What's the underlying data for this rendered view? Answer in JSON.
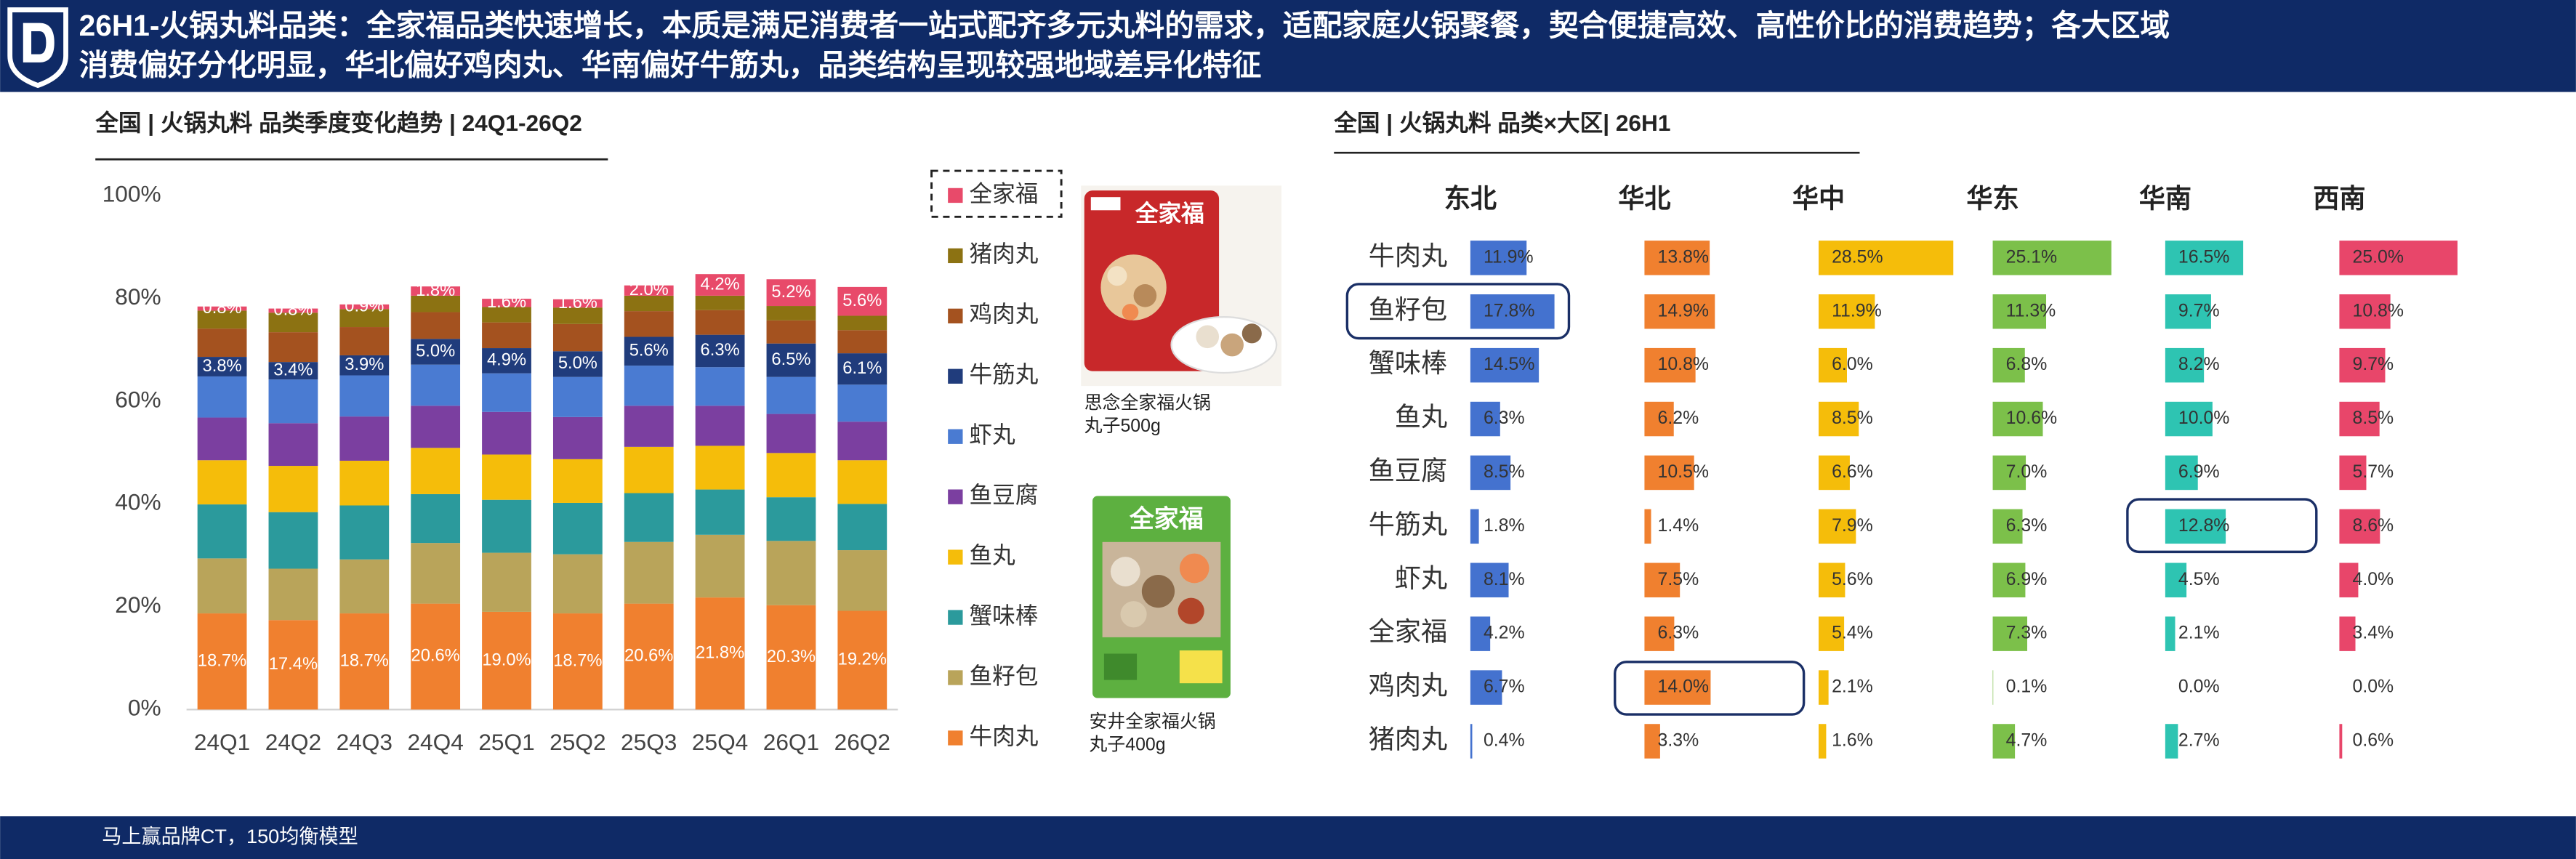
{
  "header": {
    "title_lines": [
      "26H1-火锅丸料品类：全家福品类快速增长，本质是满足消费者一站式配齐多元丸料的需求，适配家庭火锅聚餐，契合便捷高效、高性价比的消费趋势；各大区域",
      "消费偏好分化明显，华北偏好鸡肉丸、华南偏好牛筋丸，品类结构呈现较强地域差异化特征"
    ]
  },
  "chart_data": [
    {
      "type": "bar",
      "stacked": true,
      "title": "全国 | 火锅丸料 品类季度变化趋势 | 24Q1-26Q2",
      "categories": [
        "24Q1",
        "24Q2",
        "24Q3",
        "24Q4",
        "25Q1",
        "25Q2",
        "25Q3",
        "25Q4",
        "26Q1",
        "26Q2"
      ],
      "ylim": [
        0,
        100
      ],
      "yticks": [
        {
          "value": 0,
          "label": "0%"
        },
        {
          "value": 20,
          "label": "20%"
        },
        {
          "value": 40,
          "label": "40%"
        },
        {
          "value": 60,
          "label": "60%"
        },
        {
          "value": 80,
          "label": "80%"
        },
        {
          "value": 100,
          "label": "100%"
        }
      ],
      "grid": false,
      "legend": "right",
      "series": [
        {
          "name": "牛肉丸",
          "color": "#f0802f",
          "values": [
            18.7,
            17.4,
            18.7,
            20.6,
            19.0,
            18.7,
            20.6,
            21.8,
            20.3,
            19.2
          ],
          "value_labels": [
            "18.7%",
            "17.4%",
            "18.7%",
            "20.6%",
            "19.0%",
            "18.7%",
            "20.6%",
            "21.8%",
            "20.3%",
            "19.2%"
          ]
        },
        {
          "name": "鱼籽包",
          "color": "#b9a45a",
          "values": [
            10.7,
            10.0,
            10.5,
            11.8,
            11.5,
            11.5,
            12.0,
            12.2,
            12.5,
            11.8
          ]
        },
        {
          "name": "蟹味棒",
          "color": "#2b9a9c",
          "values": [
            10.5,
            11.0,
            10.5,
            9.5,
            10.3,
            10.0,
            9.5,
            8.8,
            8.5,
            9.0
          ]
        },
        {
          "name": "鱼丸",
          "color": "#f5bd0a",
          "values": [
            8.6,
            9.0,
            8.7,
            9.0,
            8.8,
            8.5,
            9.0,
            8.5,
            8.6,
            8.5
          ]
        },
        {
          "name": "鱼豆腐",
          "color": "#7b3fa0",
          "values": [
            8.3,
            8.3,
            8.6,
            8.2,
            8.3,
            8.2,
            8.0,
            7.8,
            7.6,
            7.5
          ]
        },
        {
          "name": "虾丸",
          "color": "#4a7bd2",
          "values": [
            8.0,
            8.5,
            8.0,
            8.0,
            7.5,
            7.8,
            7.8,
            7.5,
            7.2,
            7.2
          ]
        },
        {
          "name": "牛筋丸",
          "color": "#203c7c",
          "values": [
            3.8,
            3.4,
            3.9,
            5.0,
            4.9,
            5.0,
            5.6,
            6.3,
            6.5,
            6.1
          ],
          "value_labels": [
            "3.8%",
            "3.4%",
            "3.9%",
            "5.0%",
            "4.9%",
            "5.0%",
            "5.6%",
            "6.3%",
            "6.5%",
            "6.1%"
          ]
        },
        {
          "name": "鸡肉丸",
          "color": "#a4521f",
          "values": [
            5.5,
            5.8,
            5.5,
            5.2,
            5.0,
            5.3,
            5.0,
            4.8,
            4.5,
            4.5
          ]
        },
        {
          "name": "猪肉丸",
          "color": "#8c7212",
          "values": [
            3.5,
            3.8,
            3.5,
            3.2,
            3.0,
            3.2,
            3.0,
            2.8,
            2.8,
            2.8
          ]
        },
        {
          "name": "全家福",
          "color": "#e84a6a",
          "values": [
            0.8,
            0.8,
            0.9,
            1.8,
            1.6,
            1.6,
            2.0,
            4.2,
            5.2,
            5.6
          ],
          "value_labels": [
            "0.8%",
            "0.8%",
            "0.9%",
            "1.8%",
            "1.6%",
            "1.6%",
            "2.0%",
            "4.2%",
            "5.2%",
            "5.6%"
          ]
        }
      ]
    },
    {
      "type": "bar",
      "orientation": "horizontal",
      "title": "全国 | 火锅丸料 品类×大区| 26H1",
      "categories": [
        "牛肉丸",
        "鱼籽包",
        "蟹味棒",
        "鱼丸",
        "鱼豆腐",
        "牛筋丸",
        "虾丸",
        "全家福",
        "鸡肉丸",
        "猪肉丸"
      ],
      "xlim": [
        0,
        30
      ],
      "series": [
        {
          "name": "东北",
          "color": "#4472cf",
          "values": [
            11.9,
            17.8,
            14.5,
            6.3,
            8.5,
            1.8,
            8.1,
            4.2,
            6.7,
            0.4
          ],
          "value_labels": [
            "11.9%",
            "17.8%",
            "14.5%",
            "6.3%",
            "8.5%",
            "1.8%",
            "8.1%",
            "4.2%",
            "6.7%",
            "0.4%"
          ]
        },
        {
          "name": "华北",
          "color": "#f0802f",
          "values": [
            13.8,
            14.9,
            10.8,
            6.2,
            10.5,
            1.4,
            7.5,
            6.3,
            14.0,
            3.3
          ],
          "value_labels": [
            "13.8%",
            "14.9%",
            "10.8%",
            "6.2%",
            "10.5%",
            "1.4%",
            "7.5%",
            "6.3%",
            "14.0%",
            "3.3%"
          ]
        },
        {
          "name": "华中",
          "color": "#f5bd0a",
          "values": [
            28.5,
            11.9,
            6.0,
            8.5,
            6.6,
            7.9,
            5.6,
            5.4,
            2.1,
            1.6
          ],
          "value_labels": [
            "28.5%",
            "11.9%",
            "6.0%",
            "8.5%",
            "6.6%",
            "7.9%",
            "5.6%",
            "5.4%",
            "2.1%",
            "1.6%"
          ]
        },
        {
          "name": "华东",
          "color": "#7cc04a",
          "values": [
            25.1,
            11.3,
            6.8,
            10.6,
            7.0,
            6.3,
            6.9,
            7.3,
            0.1,
            4.7
          ],
          "value_labels": [
            "25.1%",
            "11.3%",
            "6.8%",
            "10.6%",
            "7.0%",
            "6.3%",
            "6.9%",
            "7.3%",
            "0.1%",
            "4.7%"
          ]
        },
        {
          "name": "华南",
          "color": "#2ec4b2",
          "values": [
            16.5,
            9.7,
            8.2,
            10.0,
            6.9,
            12.8,
            4.5,
            2.1,
            0.0,
            2.7
          ],
          "value_labels": [
            "16.5%",
            "9.7%",
            "8.2%",
            "10.0%",
            "6.9%",
            "12.8%",
            "4.5%",
            "2.1%",
            "0.0%",
            "2.7%"
          ]
        },
        {
          "name": "西南",
          "color": "#e8466a",
          "values": [
            25.0,
            10.8,
            9.7,
            8.5,
            5.7,
            8.6,
            4.0,
            3.4,
            0.0,
            0.6
          ],
          "value_labels": [
            "25.0%",
            "10.8%",
            "9.7%",
            "8.5%",
            "5.7%",
            "8.6%",
            "4.0%",
            "3.4%",
            "0.0%",
            "0.6%"
          ]
        }
      ]
    }
  ],
  "products": [
    {
      "brand": "全家福",
      "caption_lines": [
        "思念全家福火锅",
        "丸子500g"
      ]
    },
    {
      "brand": "全家福",
      "caption_lines": [
        "安井全家福火锅",
        "丸子400g"
      ]
    }
  ],
  "footer": {
    "source": "马上赢品牌CT，150均衡模型"
  }
}
